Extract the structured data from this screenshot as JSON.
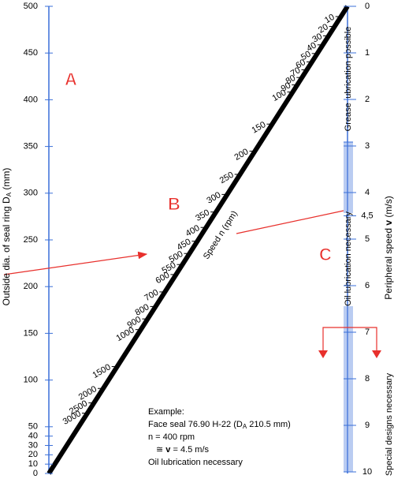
{
  "axis_a": {
    "title": [
      "Outside dia. of seal ring D",
      "A",
      " (mm)"
    ],
    "lim": [
      0,
      500
    ],
    "ticks": [
      0,
      10,
      20,
      30,
      40,
      50,
      100,
      150,
      200,
      250,
      300,
      350,
      400,
      450,
      500
    ]
  },
  "axis_n": {
    "title": "Speed n (rpm)",
    "ticks": [
      10,
      20,
      30,
      40,
      50,
      60,
      70,
      80,
      90,
      100,
      150,
      200,
      250,
      300,
      350,
      400,
      450,
      500,
      550,
      600,
      700,
      800,
      900,
      1000,
      1500,
      2000,
      2500,
      3000
    ]
  },
  "axis_v": {
    "title": [
      "Peripheral speed ",
      "v",
      " (m/s)"
    ],
    "lim": [
      0,
      10
    ],
    "ticks": [
      0,
      1,
      2,
      3,
      4,
      {
        "value": 4.5,
        "label": "4,5"
      },
      5,
      6,
      7,
      8,
      9,
      10
    ]
  },
  "zones": [
    "Grease lubrication possible",
    "Oil lubrication necessary",
    "Special designs necessary"
  ],
  "letters": [
    "A",
    "B",
    "C"
  ],
  "example": {
    "heading": "Example:",
    "line1": [
      "Face seal 76.90 H-22 (D",
      "A",
      " 210.5 mm)"
    ],
    "line2": "n = 400 rpm",
    "line3": [
      "≅ ",
      "v",
      " = 4.5 m/s"
    ],
    "line4": "Oil lubrication necessary"
  }
}
